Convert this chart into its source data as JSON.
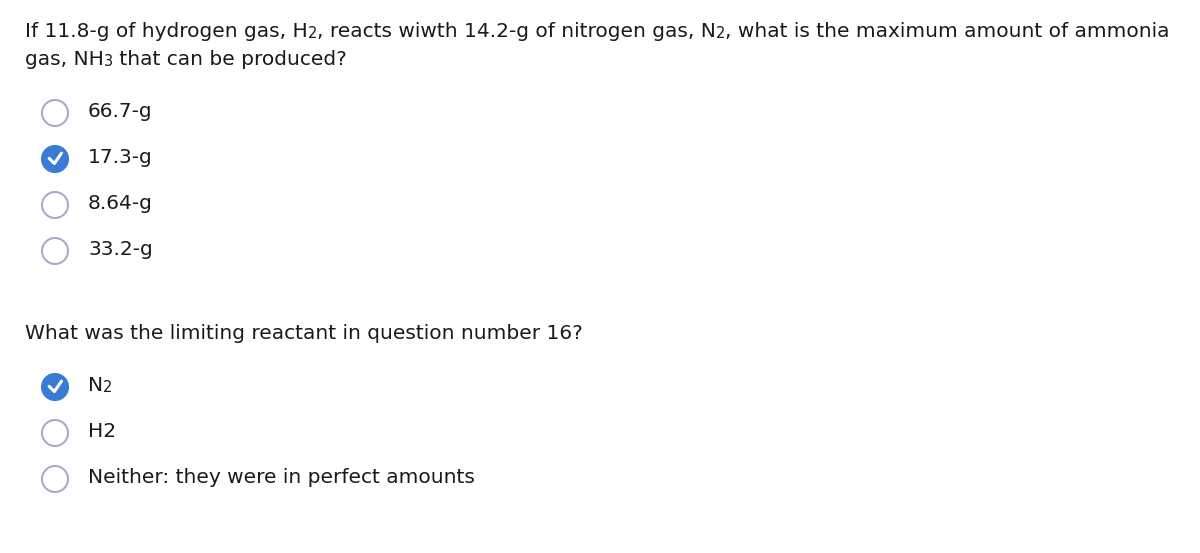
{
  "bg_color": "#ffffff",
  "text_color": "#1a1a1a",
  "circle_color_selected": "#3a7bd5",
  "circle_color_unselected": "#aaaacc",
  "q1_line1_parts": [
    [
      "If 11.8-g of hydrogen gas, H",
      false
    ],
    [
      "2",
      true
    ],
    [
      ", reacts wiwth 14.2-g of nitrogen gas, N",
      false
    ],
    [
      "2",
      true
    ],
    [
      ", what is the maximum amount of ammonia",
      false
    ]
  ],
  "q1_line2_parts": [
    [
      "gas, NH",
      false
    ],
    [
      "3",
      true
    ],
    [
      " that can be produced?",
      false
    ]
  ],
  "options_q1": [
    "66.7-g",
    "17.3-g",
    "8.64-g",
    "33.2-g"
  ],
  "selected_q1": 1,
  "question2": "What was the limiting reactant in question number 16?",
  "options_q2": [
    [
      [
        "N",
        false
      ],
      [
        "2",
        true
      ]
    ],
    [
      [
        "H2",
        false
      ]
    ],
    [
      [
        "Neither: they were in perfect amounts",
        false
      ]
    ]
  ],
  "selected_q2": 0,
  "font_size": 14.5,
  "sub_font_size": 10.5
}
